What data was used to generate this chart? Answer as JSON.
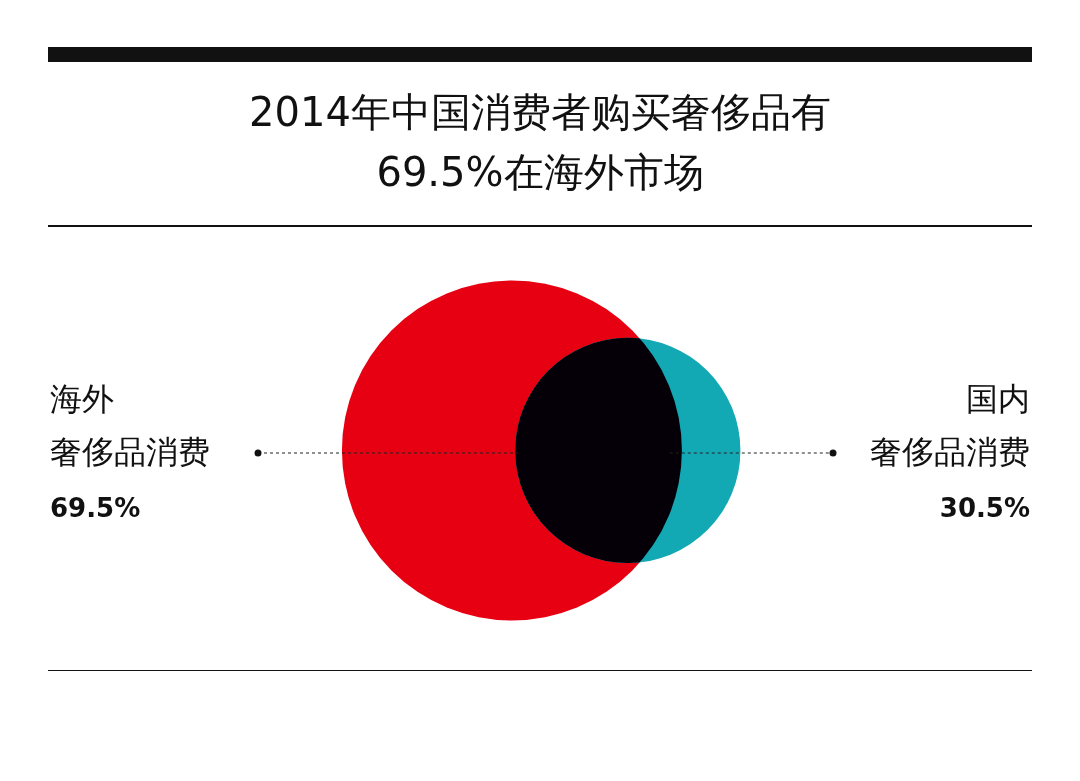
{
  "chart_data": {
    "type": "other",
    "title": "2014年中国消费者购买奢侈品有69.5%在海外市场",
    "categories": [
      "海外奢侈品消费",
      "国内奢侈品消费"
    ],
    "values": [
      69.5,
      30.5
    ],
    "colors": [
      "#e60012",
      "#12a9b5"
    ],
    "value_labels": [
      "69.5%",
      "30.5%"
    ]
  }
}
